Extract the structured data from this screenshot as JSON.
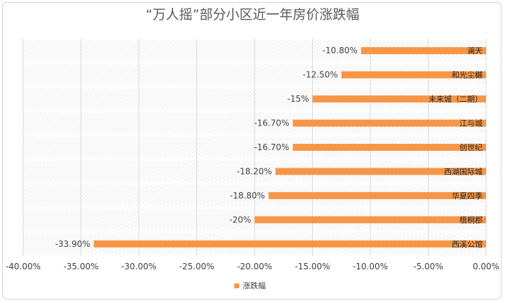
{
  "chart_data": {
    "type": "bar",
    "orientation": "horizontal",
    "title": "“万人摇”部分小区近一年房价涨跌幅",
    "categories": [
      "澜天",
      "和光尘樾",
      "未来城（二期）",
      "江与城",
      "创世纪",
      "西湖国际城",
      "华夏四季",
      "梧桐郡",
      "西溪公馆"
    ],
    "series": [
      {
        "name": "涨跌幅",
        "values": [
          -10.8,
          -12.5,
          -15,
          -16.7,
          -16.7,
          -18.2,
          -18.8,
          -20,
          -33.9
        ],
        "labels": [
          "-10.80%",
          "-12.50%",
          "-15%",
          "-16.70%",
          "-16.70%",
          "-18.20%",
          "-18.80%",
          "-20%",
          "-33.90%"
        ],
        "color": "#F79646"
      }
    ],
    "xlim": [
      -40,
      0
    ],
    "xticks": [
      "-40.00%",
      "-35.00%",
      "-30.00%",
      "-25.00%",
      "-20.00%",
      "-15.00%",
      "-10.00%",
      "-5.00%",
      "0.00%"
    ],
    "grid": true,
    "legend_position": "bottom"
  }
}
